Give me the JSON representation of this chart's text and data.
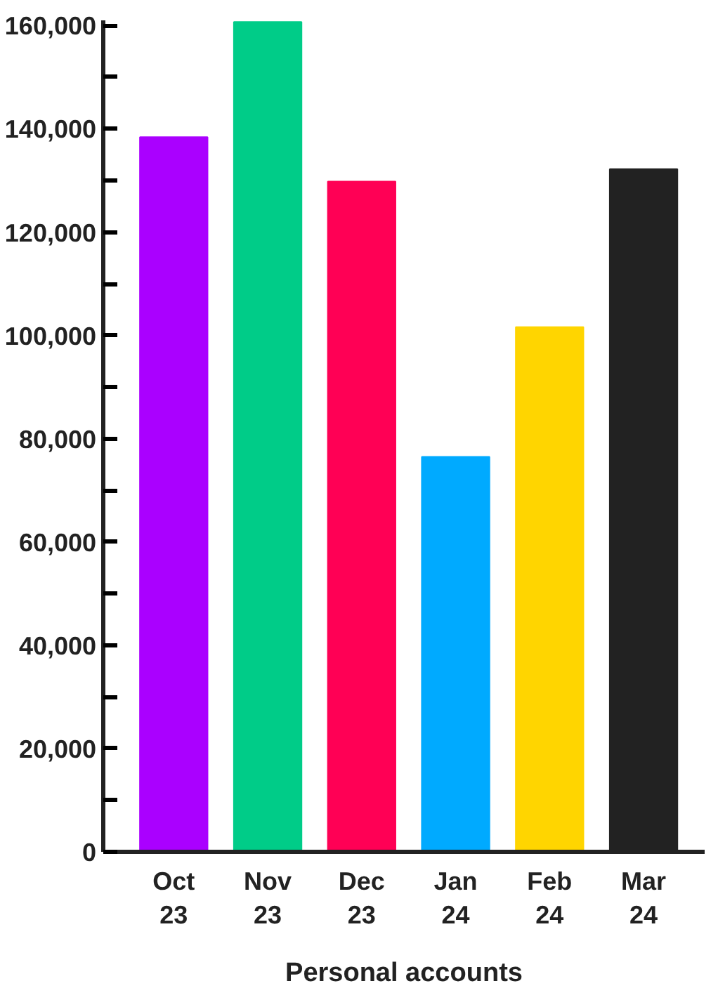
{
  "chart_data": {
    "type": "bar",
    "xlabel": "Personal accounts",
    "categories": [
      "Oct\n23",
      "Nov\n23",
      "Dec\n23",
      "Jan\n24",
      "Feb\n24",
      "Mar\n24"
    ],
    "values": [
      138400,
      160700,
      129800,
      76500,
      101600,
      132200
    ],
    "colors": [
      "#aa00ff",
      "#00cc88",
      "#ff0055",
      "#00aaff",
      "#ffd500",
      "#222222"
    ],
    "ylim": [
      0,
      161000
    ],
    "yticks": [
      0,
      {
        "value": 10000,
        "label": null
      },
      {
        "value": 20000,
        "label": "20,000"
      },
      {
        "value": 30000,
        "label": null
      },
      {
        "value": 40000,
        "label": "40,000"
      },
      {
        "value": 50000,
        "label": null
      },
      {
        "value": 60000,
        "label": "60,000"
      },
      {
        "value": 70000,
        "label": null
      },
      {
        "value": 80000,
        "label": "80,000"
      },
      {
        "value": 90000,
        "label": null
      },
      {
        "value": 100000,
        "label": "100,000"
      },
      {
        "value": 110000,
        "label": null
      },
      {
        "value": 120000,
        "label": "120,000"
      },
      {
        "value": 130000,
        "label": null
      },
      {
        "value": 140000,
        "label": "140,000"
      },
      {
        "value": 150000,
        "label": null
      },
      {
        "value": 160000,
        "label": "160,000"
      }
    ],
    "grid": false
  }
}
